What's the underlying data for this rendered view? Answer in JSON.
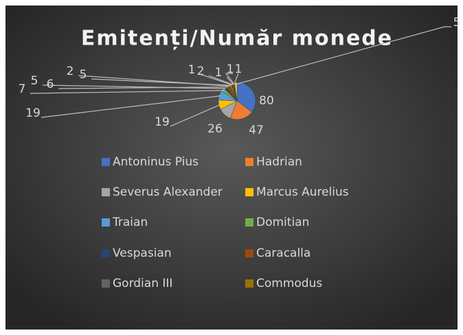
{
  "chart_data": {
    "type": "pie",
    "title": "Emitenți/Număr monede",
    "categories": [
      "Antoninus Pius",
      "Hadrian",
      "Severus Alexander",
      "Marcus Aurelius",
      "Traian",
      "Domitian",
      "Vespasian",
      "Caracalla",
      "Gordian III",
      "Commodus",
      null,
      null,
      null,
      null,
      null,
      null
    ],
    "values": [
      80,
      47,
      26,
      19,
      19,
      7,
      5,
      6,
      2,
      5,
      1,
      2,
      1,
      1,
      1,
      5
    ],
    "colors": [
      "#4472C4",
      "#ED7D31",
      "#A5A5A5",
      "#FFC000",
      "#5B9BD5",
      "#70AD47",
      "#264478",
      "#9E480E",
      "#636363",
      "#997300",
      "#255E91",
      "#43682B",
      "#698ED0",
      "#F1975A",
      "#B7B7B7",
      "#FFCD33"
    ],
    "legend": "bottom"
  }
}
